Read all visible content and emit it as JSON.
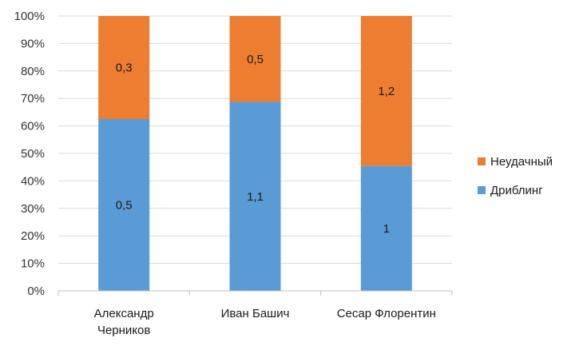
{
  "chart_data": {
    "type": "bar",
    "stacking": "percent",
    "categories": [
      "Александр Черников",
      "Иван Башич",
      "Сесар Флорентин"
    ],
    "category_lines": [
      [
        "Александр",
        "Черников"
      ],
      [
        "Иван Башич"
      ],
      [
        "Сесар Флорентин"
      ]
    ],
    "series": [
      {
        "name": "Дриблинг",
        "values": [
          0.5,
          1.1,
          1.0
        ],
        "labels": [
          "0,5",
          "1,1",
          "1"
        ],
        "color": "#5b9bd5"
      },
      {
        "name": "Неудачный",
        "values": [
          0.3,
          0.5,
          1.2
        ],
        "labels": [
          "0,3",
          "0,5",
          "1,2"
        ],
        "color": "#ed7d31"
      }
    ],
    "yticks": [
      "0%",
      "10%",
      "20%",
      "30%",
      "40%",
      "50%",
      "60%",
      "70%",
      "80%",
      "90%",
      "100%"
    ],
    "ylim": [
      0,
      100
    ],
    "grid": true,
    "legend_position": "right",
    "legend_order": [
      "Неудачный",
      "Дриблинг"
    ],
    "colors": {
      "grid": "#d9d9d9",
      "axis": "#bfbfbf"
    }
  }
}
